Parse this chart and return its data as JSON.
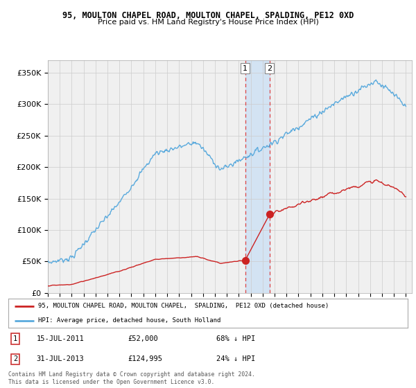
{
  "title1": "95, MOULTON CHAPEL ROAD, MOULTON CHAPEL, SPALDING, PE12 0XD",
  "title2": "Price paid vs. HM Land Registry's House Price Index (HPI)",
  "legend_line1": "95, MOULTON CHAPEL ROAD, MOULTON CHAPEL,  SPALDING,  PE12 0XD (detached house)",
  "legend_line2": "HPI: Average price, detached house, South Holland",
  "sale1_date": "15-JUL-2011",
  "sale1_price": 52000,
  "sale1_pct": "68% ↓ HPI",
  "sale2_date": "31-JUL-2013",
  "sale2_price": 124995,
  "sale2_pct": "24% ↓ HPI",
  "footnote": "Contains HM Land Registry data © Crown copyright and database right 2024.\nThis data is licensed under the Open Government Licence v3.0.",
  "hpi_color": "#5aaadd",
  "sale_color": "#cc2222",
  "sale1_x": 2011.54,
  "sale2_x": 2013.58,
  "ylim_min": 0,
  "ylim_max": 370000,
  "yticks": [
    0,
    50000,
    100000,
    150000,
    200000,
    250000,
    300000,
    350000
  ],
  "ytick_labels": [
    "£0",
    "£50K",
    "£100K",
    "£150K",
    "£200K",
    "£250K",
    "£300K",
    "£350K"
  ],
  "bg_chart": "#f0f0f0",
  "bg_fig": "#ffffff",
  "grid_color": "#cccccc"
}
